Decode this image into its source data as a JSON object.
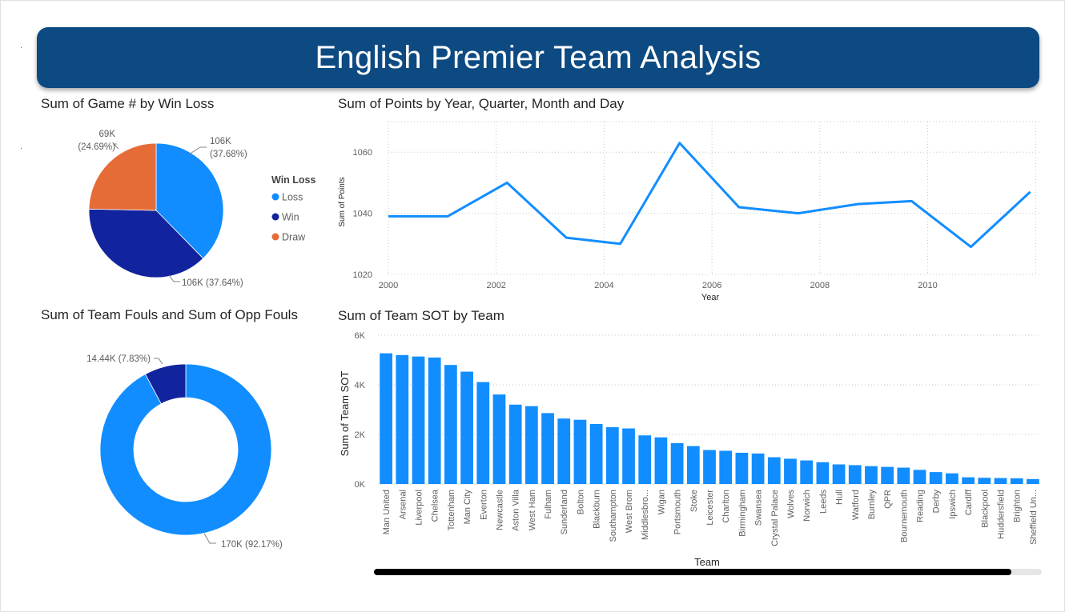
{
  "page": {
    "title": "English Premier Team Analysis"
  },
  "pie": {
    "title": "Sum of Game # by Win Loss",
    "legend_title": "Win Loss"
  },
  "donut": {
    "title": "Sum of Team Fouls and Sum of Opp Fouls"
  },
  "line": {
    "title": "Sum of Points by Year, Quarter, Month and Day"
  },
  "bar": {
    "title": "Sum of Team SOT by Team"
  },
  "chart_data": [
    {
      "type": "pie",
      "title": "Sum of Game # by Win Loss",
      "legend_title": "Win Loss",
      "legend_position": "right",
      "slices": [
        {
          "name": "Loss",
          "value": 106,
          "label_value": "106K",
          "label_pct": "(37.68%)",
          "color": "#118dff"
        },
        {
          "name": "Win",
          "value": 106,
          "label_value": "106K (37.64%)",
          "label_pct": "",
          "color": "#12239e"
        },
        {
          "name": "Draw",
          "value": 69,
          "label_value": "69K",
          "label_pct": "(24.69%)",
          "color": "#e66c37"
        }
      ],
      "fractions": [
        0.3768,
        0.3764,
        0.2469
      ]
    },
    {
      "type": "line",
      "title": "Sum of Points by Year, Quarter, Month and Day",
      "xlabel": "Year",
      "ylabel": "Sum of Points",
      "x_ticks": [
        2000,
        2002,
        2004,
        2006,
        2008,
        2010
      ],
      "y_ticks": [
        1020,
        1040,
        1060
      ],
      "xlim": [
        2000,
        2012.1
      ],
      "ylim": [
        1020,
        1070
      ],
      "grid": true,
      "color": "#118dff",
      "x": [
        2000,
        2001.1,
        2002.2,
        2003.3,
        2004.3,
        2005.4,
        2006.5,
        2007.6,
        2008.7,
        2009.7,
        2010.8,
        2011.9
      ],
      "y": [
        1039,
        1039,
        1050,
        1032,
        1030,
        1063,
        1042,
        1040,
        1043,
        1044,
        1029,
        1047
      ]
    },
    {
      "type": "pie",
      "title": "Sum of Team Fouls and Sum of Opp Fouls",
      "slices": [
        {
          "name": "",
          "value": 170000,
          "label": "170K (92.17%)",
          "color": "#118dff"
        },
        {
          "name": "",
          "value": 14440,
          "label": "14.44K (7.83%)",
          "color": "#12239e"
        }
      ],
      "fractions": [
        0.9217,
        0.0783
      ]
    },
    {
      "type": "bar",
      "title": "Sum of Team SOT by Team",
      "xlabel": "Team",
      "ylabel": "Sum of Team SOT",
      "y_ticks": [
        0,
        2000,
        4000,
        6000
      ],
      "y_tick_labels": [
        "0K",
        "2K",
        "4K",
        "6K"
      ],
      "ylim": [
        0,
        6000
      ],
      "grid": true,
      "color": "#118dff",
      "categories": [
        "Man United",
        "Arsenal",
        "Liverpool",
        "Chelsea",
        "Tottenham",
        "Man City",
        "Everton",
        "Newcastle",
        "Aston Villa",
        "West Ham",
        "Fulham",
        "Sunderland",
        "Bolton",
        "Blackburn",
        "Southampton",
        "West Brom",
        "Middlesbro...",
        "Wigan",
        "Portsmouth",
        "Stoke",
        "Leicester",
        "Charlton",
        "Birmingham",
        "Swansea",
        "Crystal Palace",
        "Wolves",
        "Norwich",
        "Leeds",
        "Hull",
        "Watford",
        "Burnley",
        "QPR",
        "Bournemouth",
        "Reading",
        "Derby",
        "Ipswich",
        "Cardiff",
        "Blackpool",
        "Huddersfield",
        "Brighton",
        "Sheffield Un..."
      ],
      "values": [
        5270,
        5200,
        5140,
        5100,
        4800,
        4530,
        4110,
        3610,
        3200,
        3140,
        2860,
        2640,
        2590,
        2420,
        2290,
        2240,
        1960,
        1880,
        1650,
        1530,
        1370,
        1340,
        1260,
        1230,
        1080,
        1020,
        950,
        880,
        790,
        760,
        720,
        690,
        660,
        570,
        480,
        430,
        270,
        250,
        240,
        230,
        200
      ]
    }
  ]
}
